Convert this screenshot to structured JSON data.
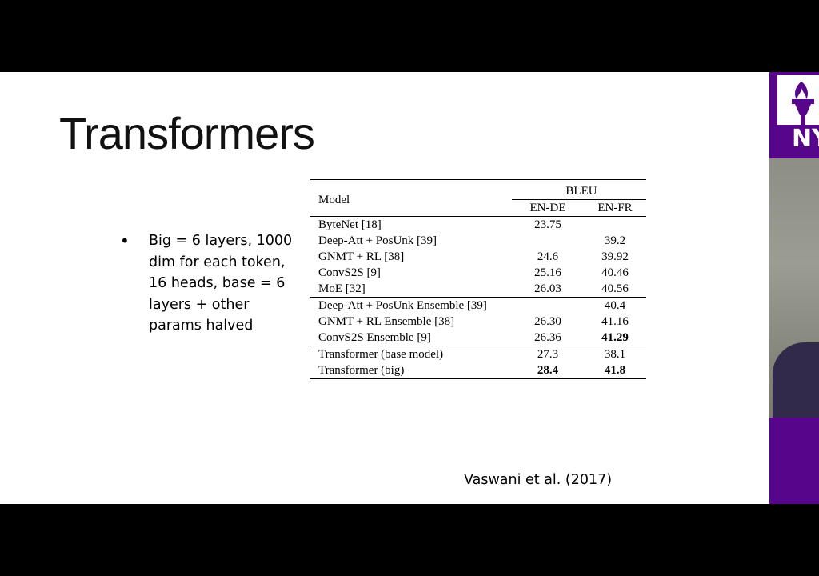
{
  "slide": {
    "title": "Transformers",
    "bullet": "Big = 6 layers, 1000 dim for each token, 16 heads, base = 6 layers + other params halved",
    "citation": "Vaswani et al. (2017)"
  },
  "table": {
    "model_header": "Model",
    "bleu_header": "BLEU",
    "col_en_de": "EN-DE",
    "col_en_fr": "EN-FR",
    "groups": [
      [
        {
          "model": "ByteNet [18]",
          "en_de": "23.75",
          "en_fr": ""
        },
        {
          "model": "Deep-Att + PosUnk [39]",
          "en_de": "",
          "en_fr": "39.2"
        },
        {
          "model": "GNMT + RL [38]",
          "en_de": "24.6",
          "en_fr": "39.92"
        },
        {
          "model": "ConvS2S [9]",
          "en_de": "25.16",
          "en_fr": "40.46"
        },
        {
          "model": "MoE [32]",
          "en_de": "26.03",
          "en_fr": "40.56"
        }
      ],
      [
        {
          "model": "Deep-Att + PosUnk Ensemble [39]",
          "en_de": "",
          "en_fr": "40.4"
        },
        {
          "model": "GNMT + RL Ensemble [38]",
          "en_de": "26.30",
          "en_fr": "41.16"
        },
        {
          "model": "ConvS2S Ensemble [9]",
          "en_de": "26.36",
          "en_fr": "41.29"
        }
      ],
      [
        {
          "model": "Transformer (base model)",
          "en_de": "27.3",
          "en_fr": "38.1"
        },
        {
          "model": "Transformer (big)",
          "en_de": "28.4",
          "en_fr": "41.8"
        }
      ]
    ]
  },
  "logo": {
    "text": "NY",
    "color": "#57068c"
  }
}
